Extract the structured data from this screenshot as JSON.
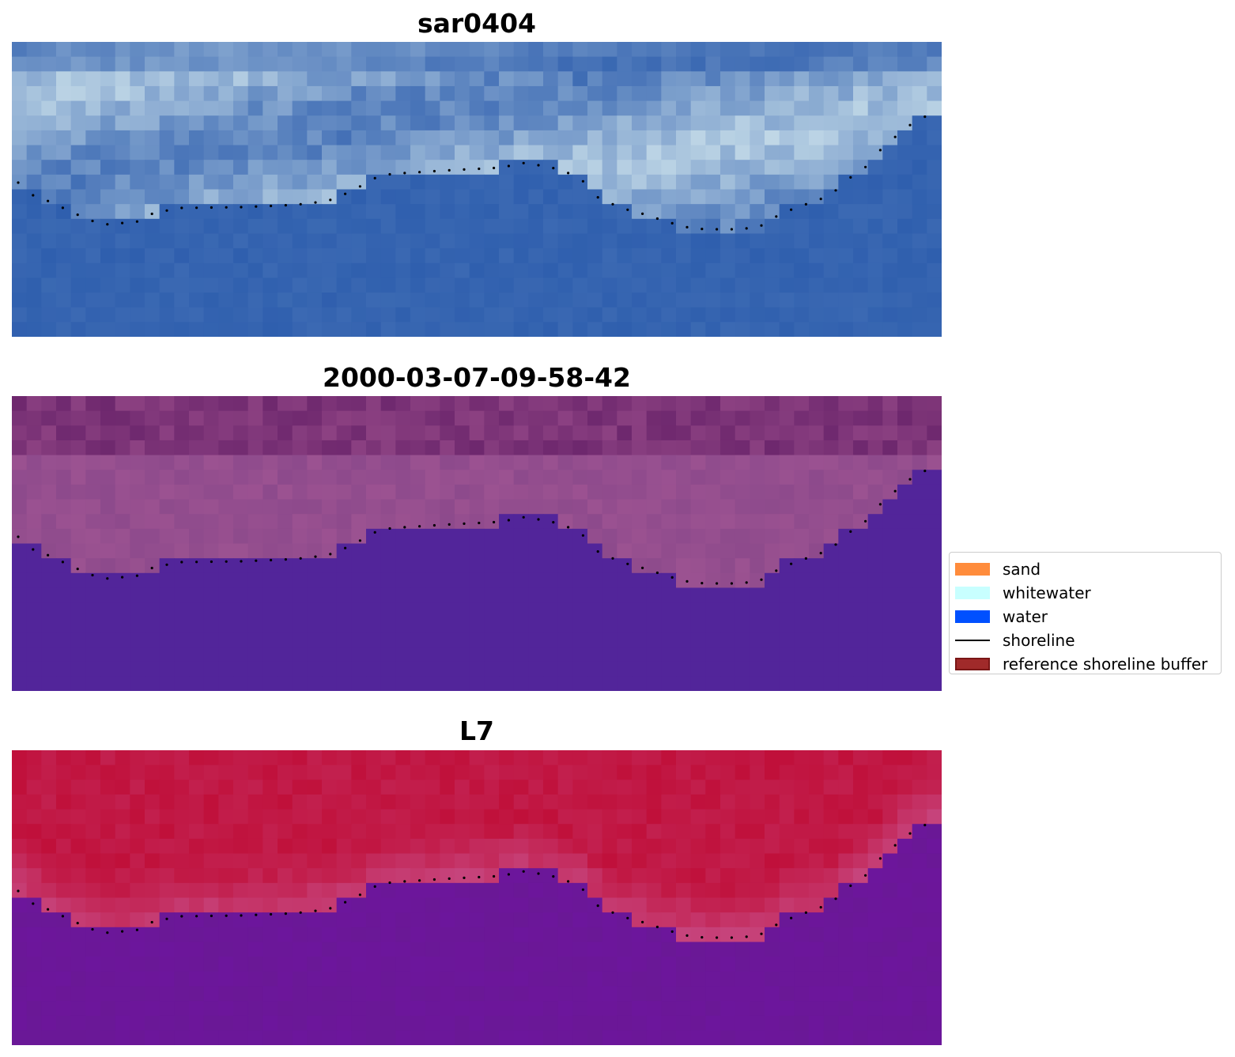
{
  "panels": [
    {
      "title": "sar0404",
      "kind": "rgb"
    },
    {
      "title": "2000-03-07-09-58-42",
      "kind": "classified"
    },
    {
      "title": "L7",
      "kind": "index"
    }
  ],
  "legend": {
    "items": [
      {
        "label": "sand",
        "type": "patch",
        "color": "#ff8c3c"
      },
      {
        "label": "whitewater",
        "type": "patch",
        "color": "#c8ffff"
      },
      {
        "label": "water",
        "type": "patch",
        "color": "#0050ff"
      },
      {
        "label": "shoreline",
        "type": "line",
        "color": "#000000"
      },
      {
        "label": "reference shoreline buffer",
        "type": "patch",
        "color": "#a02a2a",
        "edge": "#7a1616"
      }
    ]
  },
  "colors": {
    "water_rgb": "#2f5fae",
    "whitewater_rgb": "#c9dfea",
    "classified_water": "#52259a",
    "classified_land": "#8d4a8c",
    "index_high": "#c0103a",
    "index_low": "#6a1896",
    "shoreline_dots": "#000000"
  }
}
